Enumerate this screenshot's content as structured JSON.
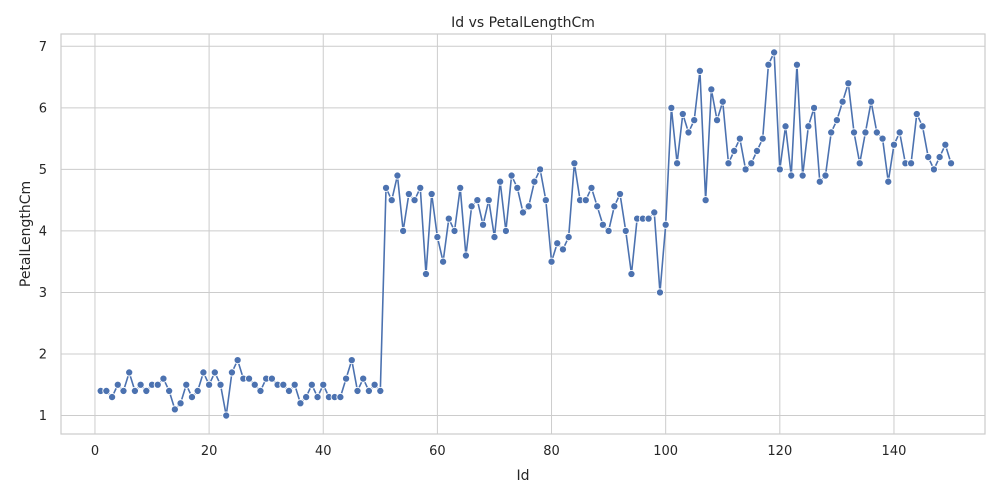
{
  "chart_data": {
    "type": "line",
    "title": "Id vs PetalLengthCm",
    "xlabel": "Id",
    "ylabel": "PetalLengthCm",
    "xlim": [
      -5.95,
      155.95
    ],
    "ylim": [
      0.7,
      7.2
    ],
    "xticks": [
      0,
      20,
      40,
      60,
      80,
      100,
      120,
      140
    ],
    "yticks": [
      1,
      2,
      3,
      4,
      5,
      6,
      7
    ],
    "grid": true,
    "series_color": "#4c72b0",
    "markers": true,
    "x": [
      1,
      2,
      3,
      4,
      5,
      6,
      7,
      8,
      9,
      10,
      11,
      12,
      13,
      14,
      15,
      16,
      17,
      18,
      19,
      20,
      21,
      22,
      23,
      24,
      25,
      26,
      27,
      28,
      29,
      30,
      31,
      32,
      33,
      34,
      35,
      36,
      37,
      38,
      39,
      40,
      41,
      42,
      43,
      44,
      45,
      46,
      47,
      48,
      49,
      50,
      51,
      52,
      53,
      54,
      55,
      56,
      57,
      58,
      59,
      60,
      61,
      62,
      63,
      64,
      65,
      66,
      67,
      68,
      69,
      70,
      71,
      72,
      73,
      74,
      75,
      76,
      77,
      78,
      79,
      80,
      81,
      82,
      83,
      84,
      85,
      86,
      87,
      88,
      89,
      90,
      91,
      92,
      93,
      94,
      95,
      96,
      97,
      98,
      99,
      100,
      101,
      102,
      103,
      104,
      105,
      106,
      107,
      108,
      109,
      110,
      111,
      112,
      113,
      114,
      115,
      116,
      117,
      118,
      119,
      120,
      121,
      122,
      123,
      124,
      125,
      126,
      127,
      128,
      129,
      130,
      131,
      132,
      133,
      134,
      135,
      136,
      137,
      138,
      139,
      140,
      141,
      142,
      143,
      144,
      145,
      146,
      147,
      148,
      149,
      150
    ],
    "y": [
      1.4,
      1.4,
      1.3,
      1.5,
      1.4,
      1.7,
      1.4,
      1.5,
      1.4,
      1.5,
      1.5,
      1.6,
      1.4,
      1.1,
      1.2,
      1.5,
      1.3,
      1.4,
      1.7,
      1.5,
      1.7,
      1.5,
      1.0,
      1.7,
      1.9,
      1.6,
      1.6,
      1.5,
      1.4,
      1.6,
      1.6,
      1.5,
      1.5,
      1.4,
      1.5,
      1.2,
      1.3,
      1.5,
      1.3,
      1.5,
      1.3,
      1.3,
      1.3,
      1.6,
      1.9,
      1.4,
      1.6,
      1.4,
      1.5,
      1.4,
      4.7,
      4.5,
      4.9,
      4.0,
      4.6,
      4.5,
      4.7,
      3.3,
      4.6,
      3.9,
      3.5,
      4.2,
      4.0,
      4.7,
      3.6,
      4.4,
      4.5,
      4.1,
      4.5,
      3.9,
      4.8,
      4.0,
      4.9,
      4.7,
      4.3,
      4.4,
      4.8,
      5.0,
      4.5,
      3.5,
      3.8,
      3.7,
      3.9,
      5.1,
      4.5,
      4.5,
      4.7,
      4.4,
      4.1,
      4.0,
      4.4,
      4.6,
      4.0,
      3.3,
      4.2,
      4.2,
      4.2,
      4.3,
      3.0,
      4.1,
      6.0,
      5.1,
      5.9,
      5.6,
      5.8,
      6.6,
      4.5,
      6.3,
      5.8,
      6.1,
      5.1,
      5.3,
      5.5,
      5.0,
      5.1,
      5.3,
      5.5,
      6.7,
      6.9,
      5.0,
      5.7,
      4.9,
      6.7,
      4.9,
      5.7,
      6.0,
      4.8,
      4.9,
      5.6,
      5.8,
      6.1,
      6.4,
      5.6,
      5.1,
      5.6,
      6.1,
      5.6,
      5.5,
      4.8,
      5.4,
      5.6,
      5.1,
      5.1,
      5.9,
      5.7,
      5.2,
      5.0,
      5.2,
      5.4,
      5.1
    ]
  }
}
